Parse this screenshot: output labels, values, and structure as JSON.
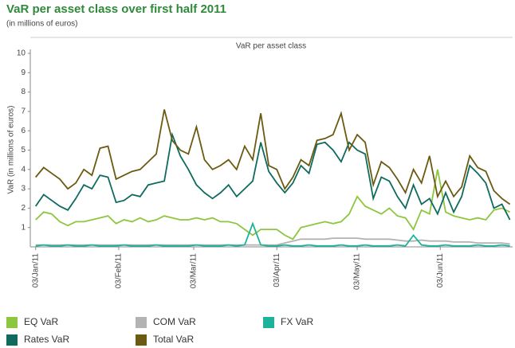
{
  "chart_data": {
    "type": "line",
    "title": "VaR per asset class over first half 2011",
    "subtitle": "(in millions of euros)",
    "plot_title": "VaR per asset class",
    "y_label": "VaR (in millions of euros)",
    "x": [
      "2011-01-03",
      "2011-01-06",
      "2011-01-09",
      "2011-01-12",
      "2011-01-15",
      "2011-01-18",
      "2011-01-21",
      "2011-01-24",
      "2011-01-27",
      "2011-01-30",
      "2011-02-02",
      "2011-02-05",
      "2011-02-08",
      "2011-02-11",
      "2011-02-14",
      "2011-02-17",
      "2011-02-20",
      "2011-02-23",
      "2011-02-26",
      "2011-03-01",
      "2011-03-04",
      "2011-03-07",
      "2011-03-10",
      "2011-03-13",
      "2011-03-16",
      "2011-03-19",
      "2011-03-22",
      "2011-03-25",
      "2011-03-28",
      "2011-03-31",
      "2011-04-03",
      "2011-04-06",
      "2011-04-09",
      "2011-04-12",
      "2011-04-15",
      "2011-04-18",
      "2011-04-21",
      "2011-04-24",
      "2011-04-27",
      "2011-04-30",
      "2011-05-03",
      "2011-05-06",
      "2011-05-09",
      "2011-05-12",
      "2011-05-15",
      "2011-05-18",
      "2011-05-21",
      "2011-05-24",
      "2011-05-27",
      "2011-05-30",
      "2011-06-02",
      "2011-06-05",
      "2011-06-08",
      "2011-06-11",
      "2011-06-14",
      "2011-06-17",
      "2011-06-20",
      "2011-06-23",
      "2011-06-26",
      "2011-06-29"
    ],
    "xlim": [
      "2011-01-01",
      "2011-06-30"
    ],
    "xticks": [
      {
        "value": "2011-01-03",
        "label": "03/Jan/11"
      },
      {
        "value": "2011-02-03",
        "label": "03/Feb/11"
      },
      {
        "value": "2011-03-03",
        "label": "03/Mar/11"
      },
      {
        "value": "2011-04-03",
        "label": "03/Apr/11"
      },
      {
        "value": "2011-05-03",
        "label": "03/May/11"
      },
      {
        "value": "2011-06-03",
        "label": "03/Jun/11"
      }
    ],
    "ylim": [
      0,
      10
    ],
    "yticks": [
      1,
      2,
      3,
      4,
      5,
      6,
      7,
      8,
      9,
      10
    ],
    "grid": false,
    "series": [
      {
        "name": "EQ VaR",
        "color": "#8dc63f",
        "values": [
          1.4,
          1.8,
          1.7,
          1.3,
          1.1,
          1.3,
          1.3,
          1.4,
          1.5,
          1.6,
          1.2,
          1.4,
          1.3,
          1.5,
          1.3,
          1.4,
          1.6,
          1.5,
          1.4,
          1.4,
          1.5,
          1.4,
          1.5,
          1.3,
          1.3,
          1.2,
          0.9,
          0.6,
          0.9,
          0.9,
          0.9,
          0.6,
          0.4,
          1.0,
          1.1,
          1.2,
          1.3,
          1.2,
          1.3,
          1.7,
          2.6,
          2.1,
          1.9,
          1.7,
          2.0,
          1.6,
          1.5,
          0.9,
          1.9,
          1.7,
          4.0,
          1.8,
          1.6,
          1.5,
          1.4,
          1.5,
          1.4,
          1.9,
          2.0,
          1.8
        ]
      },
      {
        "name": "COM VaR",
        "color": "#b3b3b3",
        "values": [
          0.1,
          0.1,
          0.1,
          0.1,
          0.1,
          0.1,
          0.1,
          0.1,
          0.1,
          0.1,
          0.1,
          0.1,
          0.1,
          0.1,
          0.1,
          0.1,
          0.1,
          0.1,
          0.1,
          0.1,
          0.1,
          0.1,
          0.1,
          0.1,
          0.1,
          0.1,
          0.1,
          0.1,
          0.1,
          0.1,
          0.1,
          0.2,
          0.3,
          0.4,
          0.4,
          0.4,
          0.4,
          0.45,
          0.45,
          0.45,
          0.45,
          0.4,
          0.4,
          0.4,
          0.4,
          0.35,
          0.3,
          0.3,
          0.35,
          0.3,
          0.3,
          0.3,
          0.25,
          0.25,
          0.25,
          0.2,
          0.2,
          0.2,
          0.2,
          0.15
        ]
      },
      {
        "name": "FX VaR",
        "color": "#1db39b",
        "values": [
          0.05,
          0.1,
          0.05,
          0.05,
          0.1,
          0.05,
          0.05,
          0.1,
          0.05,
          0.05,
          0.05,
          0.1,
          0.05,
          0.05,
          0.05,
          0.1,
          0.05,
          0.05,
          0.05,
          0.05,
          0.1,
          0.05,
          0.05,
          0.05,
          0.1,
          0.05,
          0.1,
          1.2,
          0.1,
          0.05,
          0.05,
          0.1,
          0.05,
          0.05,
          0.1,
          0.05,
          0.05,
          0.05,
          0.1,
          0.05,
          0.05,
          0.1,
          0.05,
          0.05,
          0.05,
          0.1,
          0.05,
          0.6,
          0.1,
          0.05,
          0.05,
          0.1,
          0.05,
          0.05,
          0.05,
          0.1,
          0.05,
          0.05,
          0.1,
          0.05
        ]
      },
      {
        "name": "Rates VaR",
        "color": "#0e6b5e",
        "values": [
          2.1,
          2.7,
          2.4,
          2.1,
          1.9,
          2.5,
          3.2,
          3.0,
          3.7,
          3.6,
          2.3,
          2.4,
          2.7,
          2.6,
          3.2,
          3.3,
          3.4,
          5.8,
          4.7,
          4.0,
          3.2,
          2.8,
          2.5,
          2.8,
          3.2,
          2.6,
          3.0,
          3.4,
          5.4,
          3.9,
          3.3,
          2.8,
          3.3,
          4.2,
          3.8,
          5.3,
          5.4,
          5.0,
          4.4,
          5.4,
          5.0,
          4.8,
          2.5,
          3.6,
          3.4,
          2.6,
          2.0,
          3.2,
          2.2,
          2.5,
          1.7,
          2.8,
          1.8,
          2.6,
          4.2,
          3.8,
          3.3,
          2.0,
          2.2,
          1.4
        ]
      },
      {
        "name": "Total VaR",
        "color": "#6b5a12",
        "values": [
          3.6,
          4.1,
          3.8,
          3.5,
          3.0,
          3.3,
          4.0,
          3.7,
          5.1,
          5.2,
          3.5,
          3.7,
          3.9,
          4.0,
          4.4,
          4.8,
          7.1,
          5.5,
          5.0,
          4.8,
          6.2,
          4.5,
          4.0,
          4.2,
          4.5,
          4.0,
          5.2,
          4.5,
          6.9,
          4.2,
          4.0,
          3.0,
          3.6,
          4.5,
          4.2,
          5.5,
          5.6,
          5.8,
          6.9,
          5.0,
          5.8,
          5.4,
          3.2,
          4.4,
          4.1,
          3.5,
          2.8,
          4.0,
          3.3,
          4.7,
          2.6,
          3.4,
          2.6,
          3.1,
          4.7,
          4.1,
          3.9,
          2.9,
          2.5,
          2.2
        ]
      }
    ]
  }
}
